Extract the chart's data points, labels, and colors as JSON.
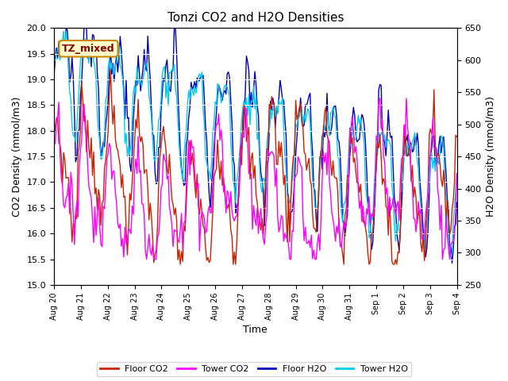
{
  "title": "Tonzi CO2 and H2O Densities",
  "xlabel": "Time",
  "ylabel_left": "CO2 Density (mmol/m3)",
  "ylabel_right": "H2O Density (mmol/m3)",
  "annotation_text": "TZ_mixed",
  "annotation_fgcolor": "#880000",
  "annotation_bg": "#ffffcc",
  "annotation_border": "#cc8800",
  "ylim_left": [
    15.0,
    20.0
  ],
  "ylim_right": [
    250,
    650
  ],
  "yticks_left": [
    15.0,
    15.5,
    16.0,
    16.5,
    17.0,
    17.5,
    18.0,
    18.5,
    19.0,
    19.5,
    20.0
  ],
  "yticks_right": [
    250,
    300,
    350,
    400,
    450,
    500,
    550,
    600,
    650
  ],
  "bg_color": "#e8e8e8",
  "grid_color": "#ffffff",
  "line_floor_co2": "#cc2200",
  "line_tower_co2": "#ff00ff",
  "line_floor_h2o": "#0000bb",
  "line_tower_h2o": "#00ccee",
  "legend_labels": [
    "Floor CO2",
    "Tower CO2",
    "Floor H2O",
    "Tower H2O"
  ],
  "xtick_labels": [
    "Aug 20",
    "Aug 21",
    "Aug 22",
    "Aug 23",
    "Aug 24",
    "Aug 25",
    "Aug 26",
    "Aug 27",
    "Aug 28",
    "Aug 29",
    "Aug 30",
    "Aug 31",
    "Sep 1",
    "Sep 2",
    "Sep 3",
    "Sep 4"
  ],
  "n_points": 336
}
